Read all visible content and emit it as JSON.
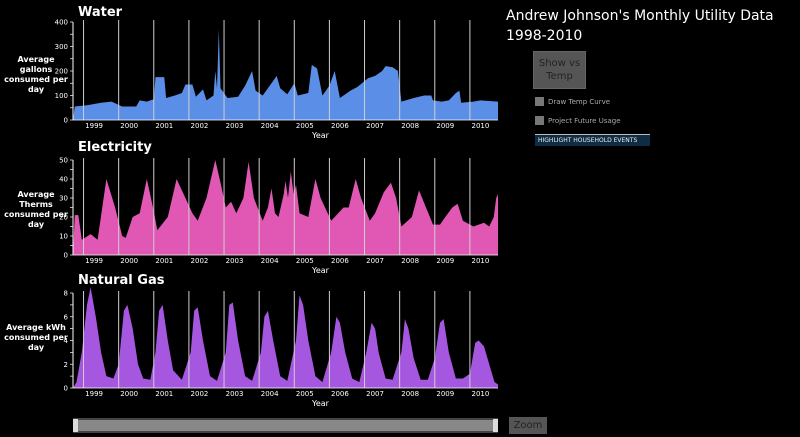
{
  "header": {
    "title_line1": "Andrew Johnson's Monthly Utility Data",
    "title_line2": "1998-2010"
  },
  "controls": {
    "show_vs_temp": "Show vs Temp",
    "draw_temp_curve": "Draw Temp Curve",
    "project_future": "Project Future Usage",
    "highlight_events": "HIGHLIGHT HOUSEHOLD EVENTS",
    "zoom": "Zoom"
  },
  "colors": {
    "water": "#5b8ee6",
    "electricity": "#e058b4",
    "gas": "#a657e0"
  },
  "chart_data": [
    {
      "type": "area",
      "title": "Water",
      "ylabel": "Average gallons consumed per day",
      "xlabel": "Year",
      "ylim": [
        0,
        400
      ],
      "yticks": [
        0,
        100,
        200,
        300,
        400
      ],
      "xticks": [
        "1999",
        "2000",
        "2001",
        "2002",
        "2003",
        "2004",
        "2005",
        "2006",
        "2007",
        "2008",
        "2009",
        "2010"
      ],
      "x_start": 1998.5,
      "x_end": 2010.6,
      "points": [
        [
          1998.5,
          0
        ],
        [
          1998.55,
          55
        ],
        [
          1998.9,
          60
        ],
        [
          1999.3,
          70
        ],
        [
          1999.6,
          75
        ],
        [
          1999.9,
          55
        ],
        [
          2000.3,
          55
        ],
        [
          2000.4,
          80
        ],
        [
          2000.6,
          75
        ],
        [
          2000.8,
          85
        ],
        [
          2000.85,
          175
        ],
        [
          2001.1,
          175
        ],
        [
          2001.15,
          90
        ],
        [
          2001.4,
          100
        ],
        [
          2001.6,
          110
        ],
        [
          2001.7,
          145
        ],
        [
          2001.9,
          145
        ],
        [
          2002.0,
          95
        ],
        [
          2002.2,
          125
        ],
        [
          2002.3,
          80
        ],
        [
          2002.5,
          100
        ],
        [
          2002.55,
          200
        ],
        [
          2002.6,
          130
        ],
        [
          2002.65,
          370
        ],
        [
          2002.7,
          130
        ],
        [
          2002.9,
          90
        ],
        [
          2003.2,
          95
        ],
        [
          2003.4,
          140
        ],
        [
          2003.6,
          200
        ],
        [
          2003.7,
          120
        ],
        [
          2003.9,
          100
        ],
        [
          2004.1,
          140
        ],
        [
          2004.3,
          180
        ],
        [
          2004.4,
          130
        ],
        [
          2004.6,
          105
        ],
        [
          2004.8,
          150
        ],
        [
          2004.9,
          100
        ],
        [
          2005.2,
          110
        ],
        [
          2005.3,
          225
        ],
        [
          2005.45,
          210
        ],
        [
          2005.6,
          100
        ],
        [
          2005.8,
          140
        ],
        [
          2005.95,
          200
        ],
        [
          2006.1,
          90
        ],
        [
          2006.4,
          120
        ],
        [
          2006.6,
          135
        ],
        [
          2006.9,
          170
        ],
        [
          2007.1,
          180
        ],
        [
          2007.3,
          200
        ],
        [
          2007.4,
          220
        ],
        [
          2007.6,
          215
        ],
        [
          2007.75,
          200
        ],
        [
          2007.85,
          75
        ],
        [
          2008.2,
          90
        ],
        [
          2008.5,
          100
        ],
        [
          2008.7,
          100
        ],
        [
          2008.75,
          80
        ],
        [
          2009.0,
          75
        ],
        [
          2009.2,
          80
        ],
        [
          2009.4,
          110
        ],
        [
          2009.5,
          120
        ],
        [
          2009.55,
          70
        ],
        [
          2009.9,
          75
        ],
        [
          2010.1,
          80
        ],
        [
          2010.6,
          75
        ]
      ]
    },
    {
      "type": "area",
      "title": "Electricity",
      "ylabel": "Average Therms consumed per day",
      "xlabel": "Year",
      "ylim": [
        0,
        50
      ],
      "yticks": [
        0,
        10,
        20,
        30,
        40,
        50
      ],
      "xticks": [
        "1999",
        "2000",
        "2001",
        "2002",
        "2003",
        "2004",
        "2005",
        "2006",
        "2007",
        "2008",
        "2009",
        "2010"
      ],
      "x_start": 1998.5,
      "x_end": 2010.6,
      "points": [
        [
          1998.5,
          0
        ],
        [
          1998.55,
          21
        ],
        [
          1998.65,
          21
        ],
        [
          1998.75,
          8
        ],
        [
          1999.0,
          11
        ],
        [
          1999.2,
          8
        ],
        [
          1999.45,
          40
        ],
        [
          1999.7,
          25
        ],
        [
          1999.9,
          10
        ],
        [
          2000.0,
          9
        ],
        [
          2000.2,
          20
        ],
        [
          2000.4,
          22
        ],
        [
          2000.6,
          40
        ],
        [
          2000.8,
          23
        ],
        [
          2000.9,
          13
        ],
        [
          2001.2,
          20
        ],
        [
          2001.45,
          40
        ],
        [
          2001.7,
          30
        ],
        [
          2001.9,
          22
        ],
        [
          2002.05,
          18
        ],
        [
          2002.3,
          30
        ],
        [
          2002.55,
          50
        ],
        [
          2002.7,
          38
        ],
        [
          2002.85,
          25
        ],
        [
          2003.0,
          28
        ],
        [
          2003.15,
          22
        ],
        [
          2003.35,
          30
        ],
        [
          2003.5,
          49
        ],
        [
          2003.65,
          30
        ],
        [
          2003.9,
          18
        ],
        [
          2004.05,
          25
        ],
        [
          2004.15,
          35
        ],
        [
          2004.25,
          22
        ],
        [
          2004.35,
          20
        ],
        [
          2004.5,
          32
        ],
        [
          2004.55,
          39
        ],
        [
          2004.62,
          30
        ],
        [
          2004.7,
          44
        ],
        [
          2004.78,
          32
        ],
        [
          2004.85,
          37
        ],
        [
          2004.95,
          22
        ],
        [
          2005.2,
          20
        ],
        [
          2005.4,
          40
        ],
        [
          2005.55,
          30
        ],
        [
          2005.85,
          18
        ],
        [
          2006.2,
          25
        ],
        [
          2006.35,
          25
        ],
        [
          2006.55,
          40
        ],
        [
          2006.7,
          30
        ],
        [
          2006.95,
          18
        ],
        [
          2007.1,
          22
        ],
        [
          2007.35,
          33
        ],
        [
          2007.55,
          38
        ],
        [
          2007.7,
          30
        ],
        [
          2007.85,
          15
        ],
        [
          2008.15,
          20
        ],
        [
          2008.35,
          34
        ],
        [
          2008.55,
          25
        ],
        [
          2008.75,
          16
        ],
        [
          2008.95,
          16
        ],
        [
          2009.1,
          20
        ],
        [
          2009.3,
          25
        ],
        [
          2009.45,
          27
        ],
        [
          2009.6,
          18
        ],
        [
          2009.9,
          15
        ],
        [
          2010.2,
          17
        ],
        [
          2010.35,
          15
        ],
        [
          2010.48,
          20
        ],
        [
          2010.55,
          30
        ],
        [
          2010.6,
          32
        ]
      ]
    },
    {
      "type": "area",
      "title": "Natural Gas",
      "ylabel": "Average kWh consumed per day",
      "xlabel": "Year",
      "ylim": [
        0,
        8
      ],
      "yticks": [
        0,
        2,
        4,
        6,
        8
      ],
      "xticks": [
        "1999",
        "2000",
        "2001",
        "2002",
        "2003",
        "2004",
        "2005",
        "2006",
        "2007",
        "2008",
        "2009",
        "2010"
      ],
      "x_start": 1998.5,
      "x_end": 2010.6,
      "points": [
        [
          1998.5,
          0
        ],
        [
          1998.6,
          0.5
        ],
        [
          1998.75,
          3
        ],
        [
          1998.9,
          7
        ],
        [
          1999.0,
          8.5
        ],
        [
          1999.15,
          6
        ],
        [
          1999.3,
          3
        ],
        [
          1999.45,
          1
        ],
        [
          1999.65,
          0.8
        ],
        [
          1999.8,
          2
        ],
        [
          1999.95,
          6.5
        ],
        [
          2000.05,
          7
        ],
        [
          2000.2,
          5
        ],
        [
          2000.35,
          2
        ],
        [
          2000.5,
          0.8
        ],
        [
          2000.7,
          0.7
        ],
        [
          2000.85,
          3
        ],
        [
          2000.95,
          6.5
        ],
        [
          2001.05,
          7
        ],
        [
          2001.2,
          4
        ],
        [
          2001.35,
          1.5
        ],
        [
          2001.6,
          0.7
        ],
        [
          2001.85,
          3
        ],
        [
          2001.95,
          6.5
        ],
        [
          2002.05,
          6.8
        ],
        [
          2002.2,
          4
        ],
        [
          2002.4,
          1
        ],
        [
          2002.6,
          0.6
        ],
        [
          2002.85,
          3
        ],
        [
          2002.95,
          7
        ],
        [
          2003.05,
          7.2
        ],
        [
          2003.2,
          4
        ],
        [
          2003.4,
          1
        ],
        [
          2003.6,
          0.6
        ],
        [
          2003.85,
          3
        ],
        [
          2003.95,
          6
        ],
        [
          2004.05,
          6.5
        ],
        [
          2004.2,
          4
        ],
        [
          2004.4,
          1
        ],
        [
          2004.6,
          0.6
        ],
        [
          2004.85,
          4
        ],
        [
          2004.95,
          7.8
        ],
        [
          2005.05,
          7
        ],
        [
          2005.2,
          4
        ],
        [
          2005.4,
          1
        ],
        [
          2005.6,
          0.5
        ],
        [
          2005.85,
          3
        ],
        [
          2006.0,
          6
        ],
        [
          2006.1,
          5.5
        ],
        [
          2006.25,
          3
        ],
        [
          2006.45,
          0.8
        ],
        [
          2006.65,
          0.5
        ],
        [
          2006.85,
          3
        ],
        [
          2007.0,
          5.5
        ],
        [
          2007.1,
          5
        ],
        [
          2007.2,
          3
        ],
        [
          2007.4,
          0.8
        ],
        [
          2007.6,
          0.7
        ],
        [
          2007.85,
          3
        ],
        [
          2007.95,
          5.8
        ],
        [
          2008.05,
          5
        ],
        [
          2008.2,
          2.5
        ],
        [
          2008.4,
          0.7
        ],
        [
          2008.6,
          0.7
        ],
        [
          2008.8,
          2.5
        ],
        [
          2008.95,
          5.5
        ],
        [
          2009.05,
          5.8
        ],
        [
          2009.2,
          3
        ],
        [
          2009.4,
          0.8
        ],
        [
          2009.6,
          0.8
        ],
        [
          2009.8,
          1.2
        ],
        [
          2009.95,
          3.8
        ],
        [
          2010.05,
          4
        ],
        [
          2010.2,
          3.5
        ],
        [
          2010.4,
          1.5
        ],
        [
          2010.5,
          0.5
        ],
        [
          2010.6,
          0.3
        ]
      ]
    }
  ]
}
